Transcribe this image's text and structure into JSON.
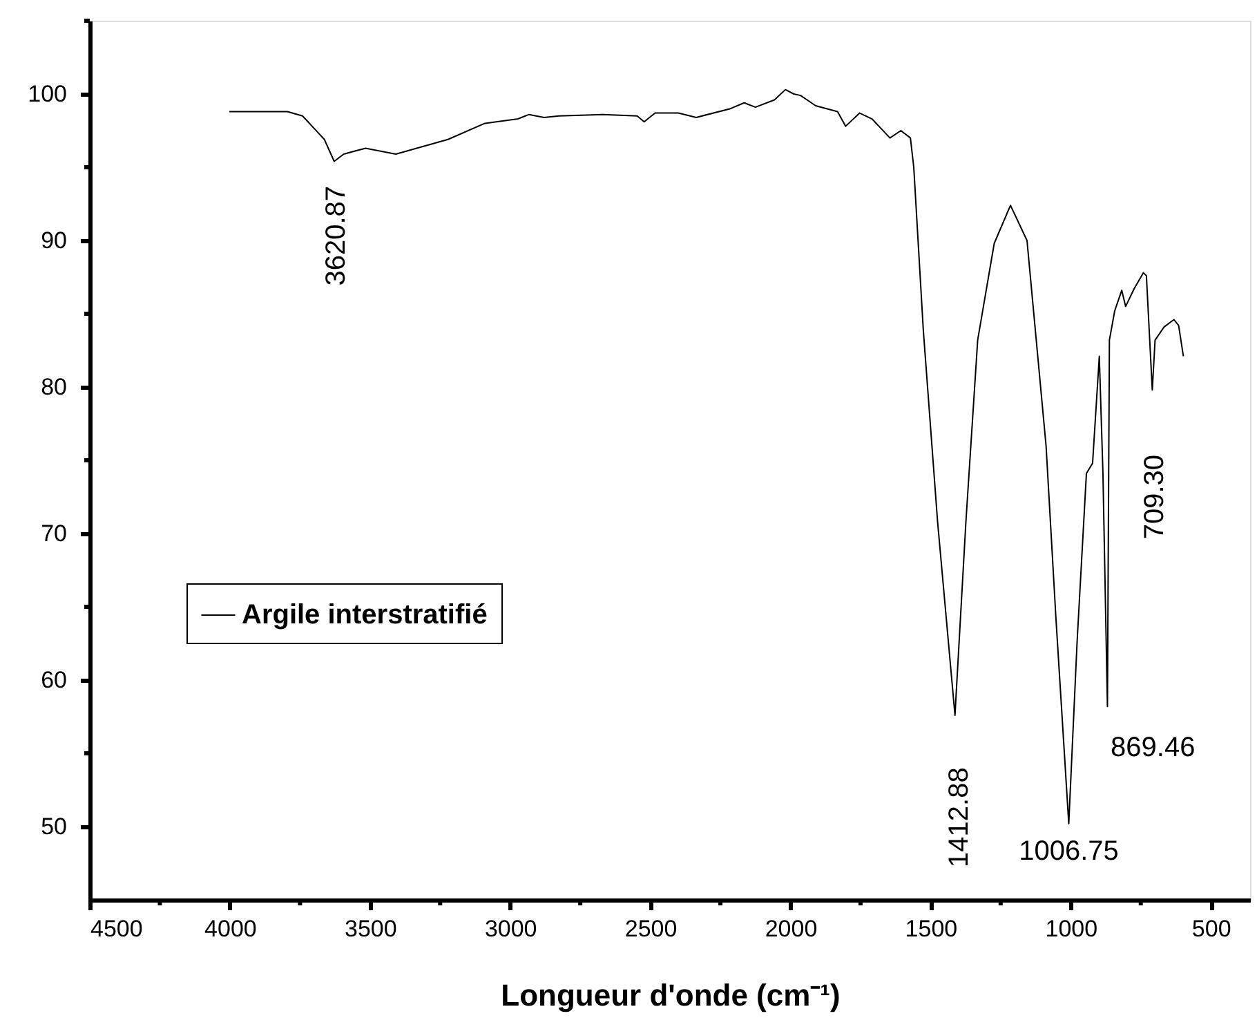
{
  "chart_data": {
    "type": "line",
    "xlabel": "Longueur d'onde (cm⁻¹)",
    "x": [
      4002,
      3795,
      3741,
      3697,
      3663,
      3628,
      3594,
      3516,
      3408,
      3222,
      3090,
      2972,
      2933,
      2879,
      2826,
      2669,
      2547,
      2522,
      2483,
      2400,
      2336,
      2214,
      2165,
      2125,
      2057,
      2018,
      1988,
      1964,
      1910,
      1832,
      1803,
      1753,
      1709,
      1645,
      1606,
      1572,
      1560,
      1526,
      1475,
      1413,
      1374,
      1332,
      1273,
      1215,
      1156,
      1088,
      1053,
      1007,
      977,
      944,
      922,
      898,
      885,
      869,
      862,
      843,
      818,
      804,
      774,
      741,
      730,
      709,
      699,
      667,
      632,
      615,
      598
    ],
    "series": [
      {
        "name": "Argile interstratifié",
        "color": "#000000",
        "values": [
          98.8,
          98.8,
          98.5,
          97.6,
          96.9,
          95.4,
          95.9,
          96.3,
          95.9,
          96.9,
          98.0,
          98.3,
          98.6,
          98.4,
          98.5,
          98.6,
          98.5,
          98.1,
          98.7,
          98.7,
          98.4,
          99.0,
          99.4,
          99.1,
          99.6,
          100.3,
          100.0,
          99.9,
          99.2,
          98.8,
          97.8,
          98.7,
          98.3,
          97.0,
          97.5,
          97.0,
          95.0,
          83.9,
          70.8,
          57.6,
          70.8,
          83.2,
          89.8,
          92.4,
          90.0,
          76.0,
          64.3,
          50.2,
          62.7,
          74.1,
          74.8,
          82.1,
          74.1,
          58.2,
          83.2,
          85.2,
          86.6,
          85.5,
          86.7,
          87.8,
          87.6,
          79.8,
          83.2,
          84.1,
          84.6,
          84.2,
          82.1
        ]
      }
    ],
    "xlim": [
      4500,
      360
    ],
    "xticks": [
      4500,
      {
        "value": 4250,
        "label": null
      },
      4000,
      {
        "value": 3750,
        "label": null
      },
      3500,
      {
        "value": 3250,
        "label": null
      },
      3000,
      {
        "value": 2750,
        "label": null
      },
      2500,
      {
        "value": 2250,
        "label": null
      },
      2000,
      {
        "value": 1750,
        "label": null
      },
      1500,
      {
        "value": 1250,
        "label": null
      },
      1000,
      {
        "value": 750,
        "label": null
      },
      500
    ],
    "ylim": [
      45,
      105
    ],
    "yticks": [
      50,
      {
        "value": 55,
        "label": null
      },
      60,
      {
        "value": 65,
        "label": null
      },
      70,
      {
        "value": 75,
        "label": null
      },
      80,
      {
        "value": 85,
        "label": null
      },
      90,
      {
        "value": 95,
        "label": null
      },
      100,
      {
        "value": 105,
        "label": null
      }
    ],
    "annotations": [
      {
        "text": "3620.87",
        "x": 3620.87,
        "y": 95.4
      },
      {
        "text": "1412.88",
        "x": 1412.88,
        "y": 57.6
      },
      {
        "text": "1006.75",
        "x": 1006.75,
        "y": 50.2
      },
      {
        "text": "869.46",
        "x": 869.46,
        "y": 58.2
      },
      {
        "text": "709.30",
        "x": 709.3,
        "y": 79.8
      }
    ],
    "legend": "left",
    "grid": false,
    "marker": "none",
    "line_style": "solid"
  }
}
